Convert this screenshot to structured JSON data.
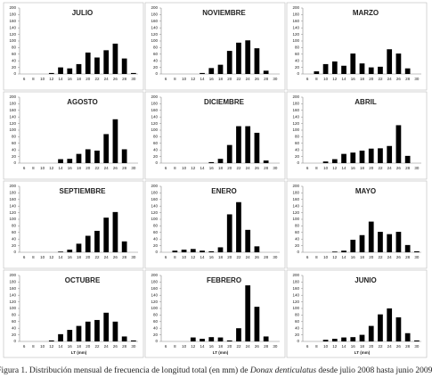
{
  "chart_data": [
    {
      "type": "bar",
      "title": "JULIO",
      "categories": [
        "6",
        "8",
        "10",
        "12",
        "14",
        "16",
        "18",
        "20",
        "22",
        "24",
        "26",
        "28",
        "30"
      ],
      "values": [
        0,
        0,
        0,
        3,
        20,
        17,
        30,
        65,
        50,
        72,
        92,
        47,
        3
      ],
      "color": "#000000",
      "ylim": [
        0,
        200
      ],
      "yticks": [
        0,
        20,
        40,
        60,
        80,
        100,
        120,
        140,
        160,
        180,
        200
      ]
    },
    {
      "type": "bar",
      "title": "NOVIEMBRE",
      "categories": [
        "6",
        "8",
        "10",
        "12",
        "14",
        "16",
        "18",
        "20",
        "22",
        "24",
        "26",
        "28",
        "30"
      ],
      "values": [
        0,
        0,
        0,
        0,
        3,
        18,
        28,
        70,
        95,
        102,
        78,
        10,
        0
      ],
      "color": "#000000",
      "ylim": [
        0,
        200
      ],
      "yticks": [
        0,
        20,
        40,
        60,
        80,
        100,
        120,
        140,
        160,
        180,
        200
      ]
    },
    {
      "type": "bar",
      "title": "MARZO",
      "categories": [
        "6",
        "8",
        "10",
        "12",
        "14",
        "16",
        "18",
        "20",
        "22",
        "24",
        "26",
        "28",
        "30"
      ],
      "values": [
        0,
        8,
        30,
        38,
        25,
        62,
        32,
        20,
        22,
        75,
        62,
        17,
        0
      ],
      "color": "#000000",
      "ylim": [
        0,
        200
      ],
      "yticks": [
        0,
        20,
        40,
        60,
        80,
        100,
        120,
        140,
        160,
        180,
        200
      ]
    },
    {
      "type": "bar",
      "title": "AGOSTO",
      "categories": [
        "6",
        "8",
        "10",
        "12",
        "14",
        "16",
        "18",
        "20",
        "22",
        "24",
        "26",
        "28",
        "30"
      ],
      "values": [
        0,
        0,
        0,
        0,
        12,
        13,
        28,
        42,
        38,
        88,
        133,
        42,
        0
      ],
      "color": "#000000",
      "ylim": [
        0,
        200
      ],
      "yticks": [
        0,
        20,
        40,
        60,
        80,
        100,
        120,
        140,
        160,
        180,
        200
      ]
    },
    {
      "type": "bar",
      "title": "DICIEMBRE",
      "categories": [
        "6",
        "8",
        "10",
        "12",
        "14",
        "16",
        "18",
        "20",
        "22",
        "24",
        "26",
        "28",
        "30"
      ],
      "values": [
        0,
        0,
        0,
        0,
        0,
        3,
        13,
        55,
        112,
        112,
        92,
        8,
        0
      ],
      "color": "#000000",
      "ylim": [
        0,
        200
      ],
      "yticks": [
        0,
        20,
        40,
        60,
        80,
        100,
        120,
        140,
        160,
        180,
        200
      ]
    },
    {
      "type": "bar",
      "title": "ABRIL",
      "categories": [
        "6",
        "8",
        "10",
        "12",
        "14",
        "16",
        "18",
        "20",
        "22",
        "24",
        "26",
        "28",
        "30"
      ],
      "values": [
        0,
        0,
        5,
        12,
        28,
        32,
        38,
        44,
        45,
        52,
        115,
        22,
        0
      ],
      "color": "#000000",
      "ylim": [
        0,
        200
      ],
      "yticks": [
        0,
        20,
        40,
        60,
        80,
        100,
        120,
        140,
        160,
        180,
        200
      ]
    },
    {
      "type": "bar",
      "title": "SEPTIEMBRE",
      "categories": [
        "6",
        "8",
        "10",
        "12",
        "14",
        "16",
        "18",
        "20",
        "22",
        "24",
        "26",
        "28",
        "30"
      ],
      "values": [
        0,
        0,
        0,
        0,
        2,
        8,
        26,
        50,
        65,
        105,
        122,
        33,
        0
      ],
      "color": "#000000",
      "ylim": [
        0,
        200
      ],
      "yticks": [
        0,
        20,
        40,
        60,
        80,
        100,
        120,
        140,
        160,
        180,
        200
      ]
    },
    {
      "type": "bar",
      "title": "ENERO",
      "categories": [
        "6",
        "8",
        "10",
        "12",
        "14",
        "16",
        "18",
        "20",
        "22",
        "24",
        "26",
        "28",
        "30"
      ],
      "values": [
        0,
        5,
        8,
        10,
        5,
        3,
        15,
        115,
        152,
        68,
        18,
        0,
        0
      ],
      "color": "#000000",
      "ylim": [
        0,
        200
      ],
      "yticks": [
        0,
        20,
        40,
        60,
        80,
        100,
        120,
        140,
        160,
        180,
        200
      ]
    },
    {
      "type": "bar",
      "title": "MAYO",
      "categories": [
        "6",
        "8",
        "10",
        "12",
        "14",
        "16",
        "18",
        "20",
        "22",
        "24",
        "26",
        "28",
        "30"
      ],
      "values": [
        0,
        0,
        0,
        2,
        5,
        38,
        52,
        93,
        62,
        55,
        62,
        22,
        3
      ],
      "color": "#000000",
      "ylim": [
        0,
        200
      ],
      "yticks": [
        0,
        20,
        40,
        60,
        80,
        100,
        120,
        140,
        160,
        180,
        200
      ]
    },
    {
      "type": "bar",
      "title": "OCTUBRE",
      "categories": [
        "6",
        "8",
        "10",
        "12",
        "14",
        "16",
        "18",
        "20",
        "22",
        "24",
        "26",
        "28",
        "30"
      ],
      "values": [
        0,
        0,
        0,
        3,
        22,
        35,
        47,
        60,
        65,
        87,
        60,
        15,
        3
      ],
      "color": "#000000",
      "ylim": [
        0,
        200
      ],
      "yticks": [
        0,
        20,
        40,
        60,
        80,
        100,
        120,
        140,
        160,
        180,
        200
      ],
      "xlabel": "LT (mm)"
    },
    {
      "type": "bar",
      "title": "FEBRERO",
      "categories": [
        "6",
        "8",
        "10",
        "12",
        "14",
        "16",
        "18",
        "20",
        "22",
        "24",
        "26",
        "28",
        "30"
      ],
      "values": [
        0,
        0,
        0,
        12,
        8,
        13,
        12,
        3,
        40,
        170,
        105,
        15,
        0
      ],
      "color": "#000000",
      "ylim": [
        0,
        200
      ],
      "yticks": [
        0,
        20,
        40,
        60,
        80,
        100,
        120,
        140,
        160,
        180,
        200
      ],
      "xlabel": "LT (mm)"
    },
    {
      "type": "bar",
      "title": "JUNIO",
      "categories": [
        "6",
        "8",
        "10",
        "12",
        "14",
        "16",
        "18",
        "20",
        "22",
        "24",
        "26",
        "28",
        "30"
      ],
      "values": [
        0,
        0,
        5,
        8,
        12,
        13,
        20,
        47,
        82,
        100,
        73,
        25,
        3
      ],
      "color": "#000000",
      "ylim": [
        0,
        200
      ],
      "yticks": [
        0,
        20,
        40,
        60,
        80,
        100,
        120,
        140,
        160,
        180,
        200
      ],
      "xlabel": "LT (mm)"
    }
  ],
  "caption": [
    "Figura 1. Distribución mensual de frecuencia de longitud total (en mm) de ",
    "Donax denticulatus",
    " desde julio 2008 hasta junio 2009."
  ]
}
